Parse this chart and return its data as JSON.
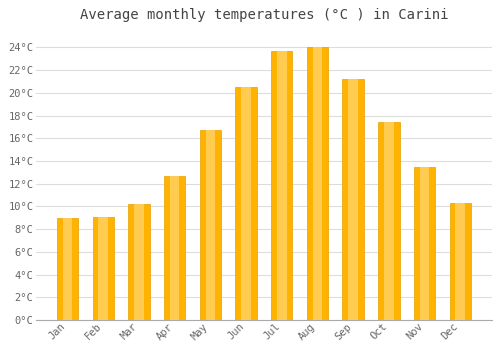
{
  "title": "Average monthly temperatures (°C ) in Carini",
  "months": [
    "Jan",
    "Feb",
    "Mar",
    "Apr",
    "May",
    "Jun",
    "Jul",
    "Aug",
    "Sep",
    "Oct",
    "Nov",
    "Dec"
  ],
  "values": [
    9.0,
    9.1,
    10.2,
    12.7,
    16.7,
    20.5,
    23.7,
    24.0,
    21.2,
    17.4,
    13.5,
    10.3
  ],
  "bar_color_left": "#FFB300",
  "bar_color_center": "#FFD060",
  "bar_color_right": "#FFA000",
  "bar_edge_color": "#E8A000",
  "background_color": "#FFFFFF",
  "plot_bg_color": "#FFFFFF",
  "grid_color": "#DDDDDD",
  "ytick_labels": [
    "0°C",
    "2°C",
    "4°C",
    "6°C",
    "8°C",
    "10°C",
    "12°C",
    "14°C",
    "16°C",
    "18°C",
    "20°C",
    "22°C",
    "24°C"
  ],
  "ytick_values": [
    0,
    2,
    4,
    6,
    8,
    10,
    12,
    14,
    16,
    18,
    20,
    22,
    24
  ],
  "ylim": [
    0,
    25.5
  ],
  "title_fontsize": 10,
  "tick_fontsize": 7.5,
  "title_color": "#444444",
  "tick_color": "#666666",
  "font_family": "monospace"
}
